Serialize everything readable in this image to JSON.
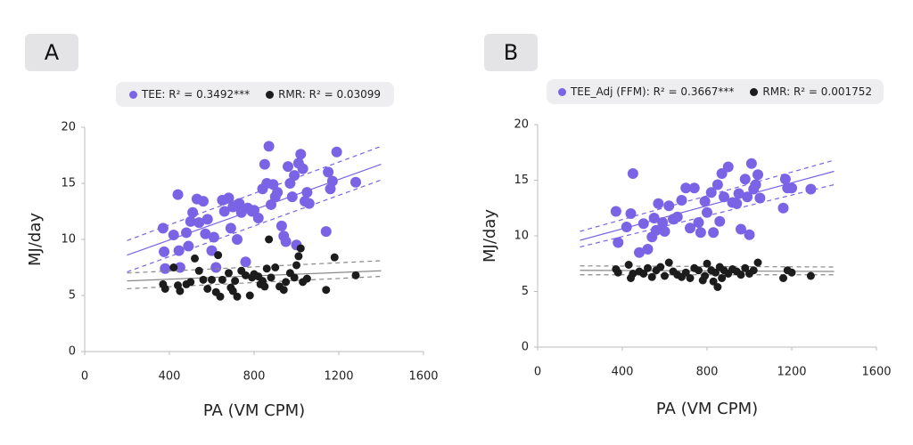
{
  "chart_data": [
    {
      "type": "scatter",
      "panel_label": "A",
      "xlabel": "PA (VM CPM)",
      "ylabel": "MJ/day",
      "xlim": [
        0,
        1600
      ],
      "ylim": [
        0,
        20
      ],
      "xticks": [
        0,
        400,
        800,
        1200,
        1600
      ],
      "yticks": [
        0,
        5,
        10,
        15,
        20
      ],
      "series": [
        {
          "name": "TEE: R² = 0.3492***",
          "color": "#7b63e6",
          "x": [
            370,
            375,
            380,
            420,
            440,
            445,
            450,
            480,
            490,
            500,
            510,
            530,
            540,
            560,
            570,
            580,
            600,
            610,
            620,
            650,
            660,
            680,
            690,
            700,
            720,
            730,
            740,
            760,
            770,
            790,
            800,
            820,
            840,
            850,
            860,
            870,
            880,
            890,
            900,
            910,
            930,
            940,
            950,
            960,
            970,
            980,
            990,
            1000,
            1010,
            1020,
            1030,
            1040,
            1050,
            1060,
            1140,
            1150,
            1160,
            1170,
            1190,
            1280
          ],
          "y": [
            11,
            8.9,
            7.4,
            10.4,
            14,
            9,
            7.5,
            10.6,
            9.4,
            11.6,
            12.4,
            13.6,
            11.5,
            13.4,
            10.5,
            11.8,
            9,
            10.2,
            7.5,
            13.5,
            12.5,
            13.7,
            11,
            12.9,
            10,
            13.2,
            12.4,
            8,
            12.8,
            12.5,
            12.6,
            11.9,
            14.5,
            16.7,
            15,
            18.3,
            13.1,
            14.9,
            13.8,
            14.2,
            11.2,
            10.3,
            9.8,
            16.5,
            15,
            13.8,
            15.7,
            9.5,
            16.8,
            17.6,
            16.3,
            13.4,
            14.2,
            13.2,
            10.7,
            16,
            14.5,
            15.2,
            17.8,
            15.1
          ],
          "fit": {
            "x": [
              200,
              1400
            ],
            "y": [
              8.6,
              16.7
            ],
            "lower": [
              7.1,
              15.3
            ],
            "upper": [
              9.9,
              18.3
            ]
          }
        },
        {
          "name": "RMR: R² = 0.03099",
          "color": "#1c1c1c",
          "x": [
            370,
            380,
            420,
            440,
            450,
            480,
            500,
            520,
            540,
            560,
            580,
            600,
            620,
            630,
            640,
            650,
            680,
            690,
            700,
            710,
            720,
            740,
            760,
            780,
            790,
            800,
            820,
            830,
            840,
            850,
            860,
            870,
            880,
            900,
            920,
            940,
            950,
            970,
            990,
            1000,
            1010,
            1020,
            1030,
            1050,
            1140,
            1180,
            1280
          ],
          "y": [
            6,
            5.6,
            7.5,
            5.9,
            5.4,
            6,
            6.2,
            8.3,
            7.2,
            6.4,
            5.6,
            6.4,
            5.3,
            8.6,
            4.9,
            6.4,
            7,
            5.7,
            5.4,
            6.3,
            4.9,
            7.2,
            6.8,
            5,
            6.6,
            6.9,
            6.7,
            6,
            6.3,
            5.8,
            7.4,
            10,
            6.6,
            7.5,
            5.8,
            5.5,
            6.2,
            7,
            6.6,
            7.7,
            8.5,
            9.2,
            6.2,
            6.5,
            5.5,
            8.4,
            6.8
          ],
          "fit": {
            "x": [
              200,
              1400
            ],
            "y": [
              6.3,
              7.2
            ],
            "lower": [
              5.6,
              6.7
            ],
            "upper": [
              7.0,
              8.1
            ]
          }
        }
      ]
    },
    {
      "type": "scatter",
      "panel_label": "B",
      "xlabel": "PA (VM CPM)",
      "ylabel": "MJ/day",
      "xlim": [
        0,
        1600
      ],
      "ylim": [
        0,
        20
      ],
      "xticks": [
        0,
        400,
        800,
        1200,
        1600
      ],
      "yticks": [
        0,
        5,
        10,
        15,
        20
      ],
      "series": [
        {
          "name": "TEE_Adj (FFM): R² = 0.3667***",
          "color": "#7b63e6",
          "x": [
            370,
            380,
            420,
            440,
            450,
            480,
            500,
            520,
            540,
            550,
            560,
            570,
            590,
            600,
            620,
            640,
            660,
            680,
            700,
            720,
            740,
            760,
            770,
            790,
            800,
            820,
            830,
            850,
            860,
            870,
            880,
            900,
            920,
            940,
            950,
            960,
            980,
            990,
            1000,
            1010,
            1020,
            1030,
            1040,
            1050,
            1160,
            1170,
            1180,
            1200,
            1290
          ],
          "y": [
            12.2,
            9.4,
            10.8,
            12,
            15.6,
            8.5,
            11.1,
            8.8,
            9.9,
            11.6,
            10.5,
            12.9,
            11.2,
            10.4,
            12.7,
            11.5,
            11.7,
            13.2,
            14.3,
            10.7,
            14.3,
            11.2,
            10.3,
            13.1,
            12.1,
            13.9,
            10.3,
            14.6,
            11.3,
            15.6,
            13.5,
            16.2,
            13,
            12.9,
            13.8,
            10.6,
            15.1,
            13.5,
            10.1,
            16.5,
            14.2,
            14.6,
            15.5,
            13.4,
            12.5,
            15.1,
            14.3,
            14.3,
            14.2
          ],
          "fit": {
            "x": [
              200,
              1400
            ],
            "y": [
              9.6,
              15.8
            ],
            "lower": [
              9.0,
              14.6
            ],
            "upper": [
              10.4,
              16.8
            ]
          }
        },
        {
          "name": "RMR: R² = 0.001752",
          "color": "#1c1c1c",
          "x": [
            370,
            380,
            430,
            440,
            450,
            480,
            500,
            520,
            540,
            560,
            580,
            600,
            620,
            640,
            660,
            680,
            700,
            720,
            740,
            760,
            780,
            790,
            800,
            820,
            830,
            840,
            850,
            860,
            870,
            880,
            900,
            920,
            940,
            960,
            980,
            1000,
            1020,
            1040,
            1160,
            1180,
            1200,
            1290
          ],
          "y": [
            7,
            6.7,
            7.4,
            6.2,
            6.6,
            6.8,
            6.6,
            7.1,
            6.3,
            6.9,
            7.2,
            6.4,
            7.6,
            6.8,
            6.5,
            6.3,
            6.7,
            6.2,
            7.1,
            6.9,
            6,
            6.4,
            7.5,
            6.9,
            5.9,
            6.7,
            5.4,
            7.2,
            6.2,
            6.9,
            6.6,
            7,
            6.8,
            6.5,
            7.1,
            6.6,
            6.9,
            7.6,
            6.2,
            6.9,
            6.7,
            6.4
          ],
          "fit": {
            "x": [
              200,
              1400
            ],
            "y": [
              6.9,
              6.8
            ],
            "lower": [
              6.5,
              6.5
            ],
            "upper": [
              7.3,
              7.2
            ]
          }
        }
      ]
    }
  ]
}
